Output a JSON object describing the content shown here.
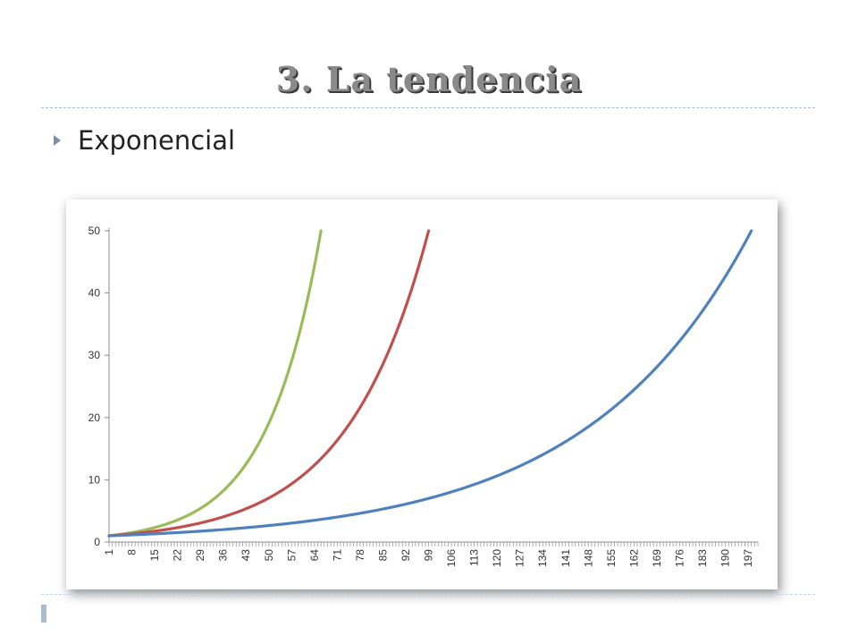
{
  "slide": {
    "title": "3. La tendencia",
    "bullet": "Exponencial"
  },
  "chart_data": {
    "type": "line",
    "title": "",
    "xlabel": "",
    "ylabel": "",
    "ylim": [
      0,
      50
    ],
    "yticks": [
      0,
      10,
      20,
      30,
      40,
      50
    ],
    "xlim": [
      1,
      200
    ],
    "xtick_labels": [
      1,
      8,
      15,
      22,
      29,
      36,
      43,
      50,
      57,
      64,
      71,
      78,
      85,
      92,
      99,
      106,
      113,
      120,
      127,
      134,
      141,
      148,
      155,
      162,
      169,
      176,
      183,
      190,
      197
    ],
    "grid": false,
    "legend": "none",
    "series": [
      {
        "color": "#9bbb59",
        "x_end": 66,
        "y_end": 50,
        "y_start": 1
      },
      {
        "color": "#c0504d",
        "x_end": 99,
        "y_end": 50,
        "y_start": 1
      },
      {
        "color": "#4f81bd",
        "x_end": 198,
        "y_end": 50,
        "y_start": 1
      }
    ]
  }
}
